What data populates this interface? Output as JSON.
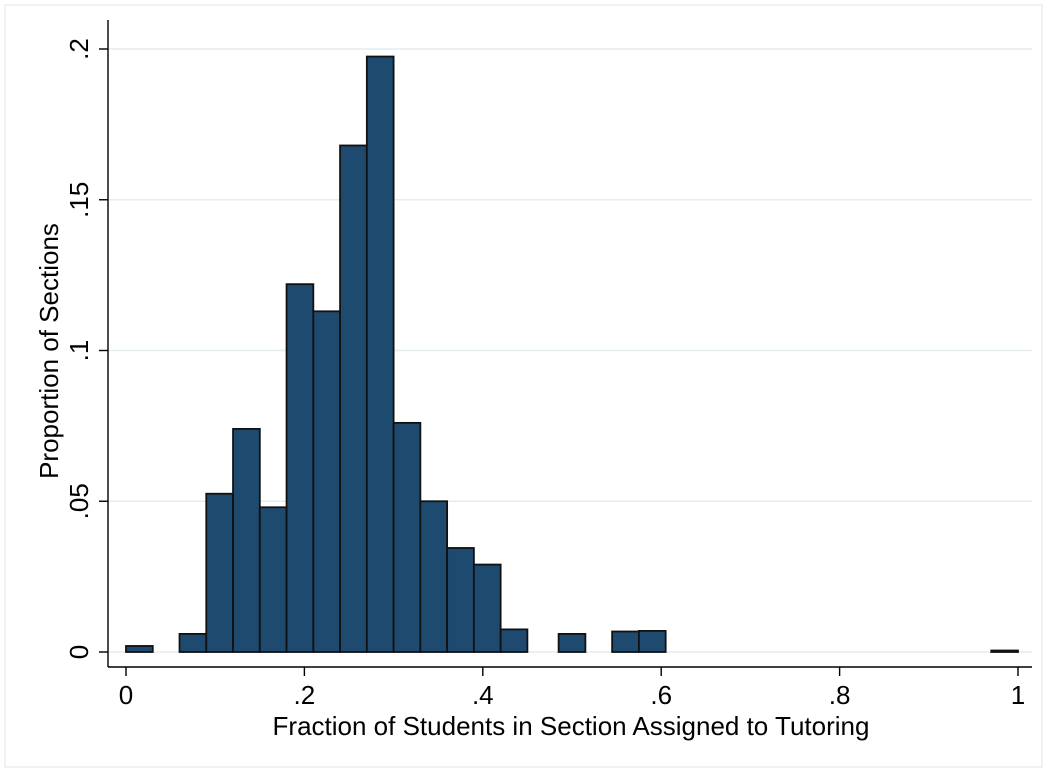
{
  "chart_data": {
    "type": "bar",
    "title": "",
    "xlabel": "Fraction of Students in Section Assigned to Tutoring",
    "ylabel": "Proportion of Sections",
    "xlim": [
      0,
      1
    ],
    "ylim": [
      0,
      0.2
    ],
    "x_ticks": [
      {
        "value": 0,
        "label": "0"
      },
      {
        "value": 0.2,
        "label": ".2"
      },
      {
        "value": 0.4,
        "label": ".4"
      },
      {
        "value": 0.6,
        "label": ".6"
      },
      {
        "value": 0.8,
        "label": ".8"
      },
      {
        "value": 1,
        "label": "1"
      }
    ],
    "y_ticks": [
      {
        "value": 0,
        "label": "0"
      },
      {
        "value": 0.05,
        "label": ".05"
      },
      {
        "value": 0.1,
        "label": ".1"
      },
      {
        "value": 0.15,
        "label": ".15"
      },
      {
        "value": 0.2,
        "label": ".2"
      }
    ],
    "grid": true,
    "legend": "none",
    "bar_color": "#1f4a6f",
    "bar_edge_color": "#111111",
    "bins": [
      {
        "start": 0.0,
        "end": 0.03,
        "value": 0.002
      },
      {
        "start": 0.06,
        "end": 0.09,
        "value": 0.006
      },
      {
        "start": 0.09,
        "end": 0.12,
        "value": 0.0525
      },
      {
        "start": 0.12,
        "end": 0.15,
        "value": 0.074
      },
      {
        "start": 0.15,
        "end": 0.18,
        "value": 0.048
      },
      {
        "start": 0.18,
        "end": 0.21,
        "value": 0.122
      },
      {
        "start": 0.21,
        "end": 0.24,
        "value": 0.113
      },
      {
        "start": 0.24,
        "end": 0.27,
        "value": 0.168
      },
      {
        "start": 0.27,
        "end": 0.3,
        "value": 0.1975
      },
      {
        "start": 0.3,
        "end": 0.33,
        "value": 0.076
      },
      {
        "start": 0.33,
        "end": 0.36,
        "value": 0.05
      },
      {
        "start": 0.36,
        "end": 0.39,
        "value": 0.0345
      },
      {
        "start": 0.39,
        "end": 0.42,
        "value": 0.029
      },
      {
        "start": 0.42,
        "end": 0.45,
        "value": 0.0075
      },
      {
        "start": 0.485,
        "end": 0.515,
        "value": 0.006
      },
      {
        "start": 0.545,
        "end": 0.575,
        "value": 0.0068
      },
      {
        "start": 0.575,
        "end": 0.605,
        "value": 0.007
      },
      {
        "start": 0.97,
        "end": 1.0,
        "value": 0.0005
      }
    ]
  }
}
